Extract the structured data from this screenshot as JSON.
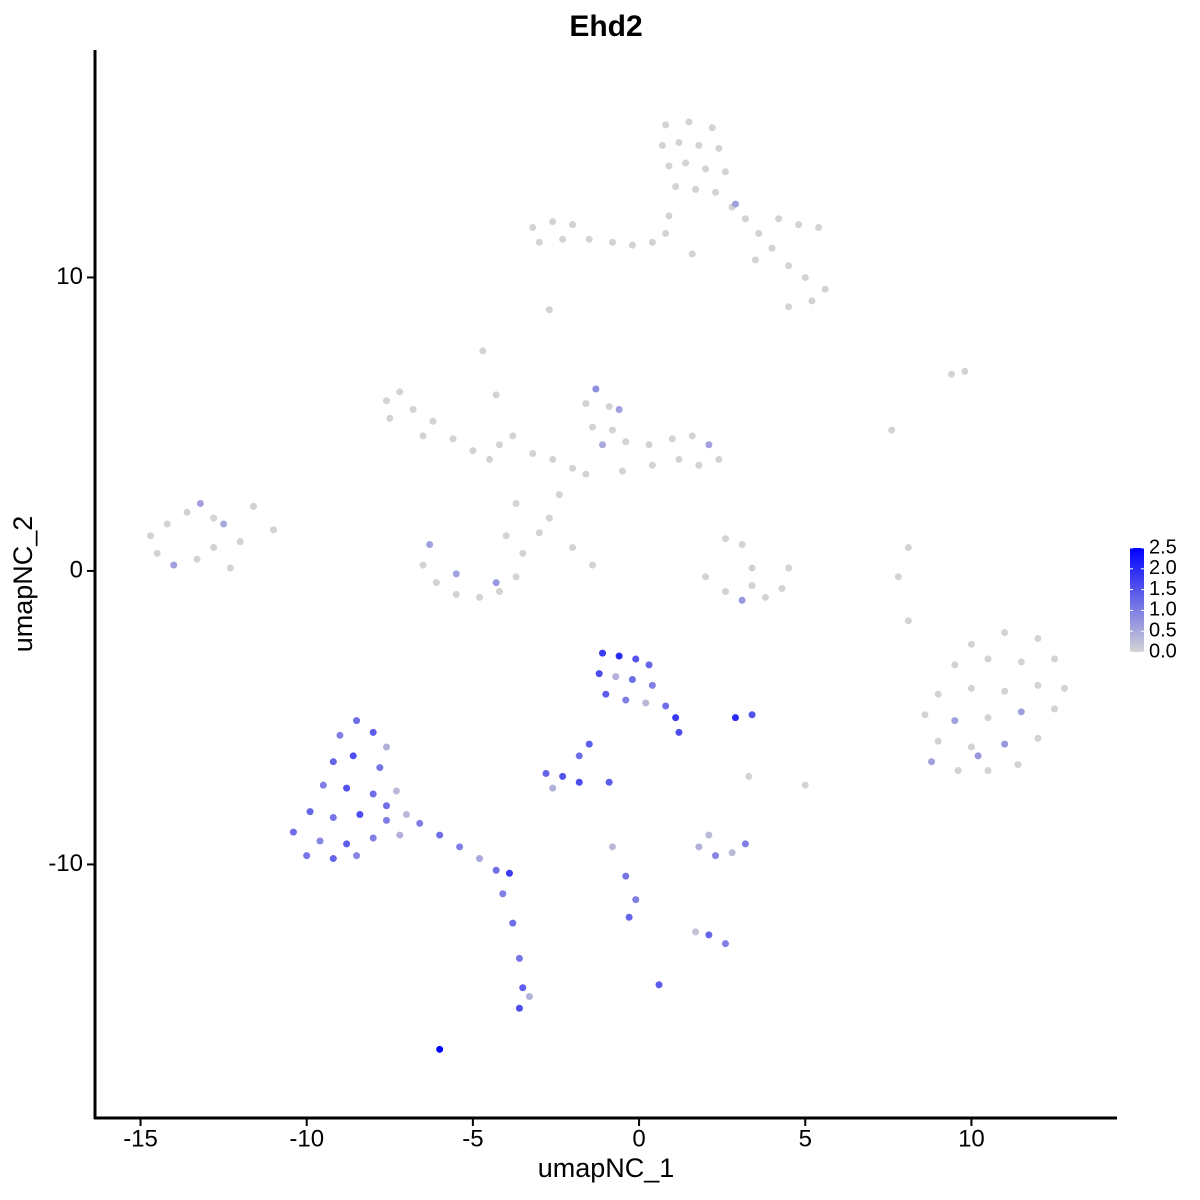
{
  "chart_data": {
    "type": "scatter",
    "title": "Ehd2",
    "x_label": "umapNC_1",
    "y_label": "umapNC_2",
    "xlim": [
      -16.37,
      14.38
    ],
    "ylim": [
      -18.64,
      17.75
    ],
    "xticks": [
      -15,
      -10,
      -5,
      0,
      5,
      10
    ],
    "yticks": [
      -10,
      0,
      10
    ],
    "clim": [
      0,
      2.5
    ],
    "cticks": [
      {
        "value": 0,
        "label": "0.0"
      },
      0.5,
      {
        "value": 1,
        "label": "1.0"
      },
      1.5,
      {
        "value": 2,
        "label": "2.0"
      },
      2.5
    ],
    "low_color": "#d3d3d3",
    "high_color": "#0000ff",
    "x": [
      0.8,
      1.5,
      2.2,
      0.7,
      1.2,
      1.8,
      2.4,
      0.9,
      1.4,
      2.0,
      2.6,
      1.1,
      1.7,
      2.3,
      2.8,
      3.2,
      3.6,
      4.0,
      4.5,
      5.0,
      5.6,
      5.2,
      4.5,
      2.9,
      4.2,
      4.8,
      5.4,
      3.5,
      -3.2,
      -2.6,
      -2.0,
      -3.0,
      -2.3,
      -1.5,
      -0.8,
      -0.2,
      0.4,
      0.8,
      0.9,
      1.6,
      -2.7,
      -7.6,
      -7.2,
      -7.5,
      -6.8,
      -6.2,
      -6.5,
      -5.6,
      -5.0,
      -4.5,
      -4.2,
      -4.7,
      -4.3,
      -3.8,
      -3.2,
      -2.6,
      -2.0,
      -2.4,
      -2.7,
      -3.7,
      -1.3,
      -1.6,
      -0.9,
      -0.6,
      -1.4,
      -0.8,
      -1.1,
      -0.4,
      0.3,
      1.0,
      1.6,
      2.1,
      2.4,
      1.8,
      1.2,
      0.4,
      -0.5,
      -1.6,
      -6.3,
      -6.5,
      -6.1,
      -5.5,
      -4.8,
      -4.2,
      -3.7,
      -3.5,
      -4.0,
      -5.5,
      -4.3,
      -3.0,
      -2.0,
      -1.4,
      -14.7,
      -14.2,
      -13.6,
      -13.2,
      -12.8,
      -14.5,
      -14.0,
      -13.3,
      -12.8,
      -12.3,
      -12.0,
      -11.6,
      -11.0,
      -12.5,
      2.6,
      3.1,
      3.4,
      2.0,
      2.6,
      3.1,
      3.8,
      4.3,
      4.5,
      3.4,
      7.6,
      9.4,
      9.8,
      8.1,
      7.8,
      8.1,
      10.0,
      11.0,
      12.0,
      9.5,
      10.5,
      11.5,
      12.5,
      9.0,
      10.0,
      11.0,
      12.0,
      12.8,
      8.6,
      9.5,
      10.5,
      11.5,
      12.5,
      9.0,
      10.0,
      11.0,
      12.0,
      9.6,
      10.5,
      11.4,
      8.8,
      10.2,
      -1.1,
      -0.6,
      -0.1,
      0.3,
      -1.2,
      -0.7,
      -0.2,
      0.4,
      -1.0,
      -0.4,
      0.2,
      0.8,
      1.1,
      1.2,
      -1.5,
      -1.8,
      2.9,
      3.4,
      -8.5,
      -9.0,
      -8.0,
      -7.6,
      -9.2,
      -8.6,
      -7.8,
      -9.5,
      -8.8,
      -8.0,
      -7.3,
      -9.9,
      -9.2,
      -8.4,
      -7.6,
      -10.4,
      -9.6,
      -8.8,
      -8.0,
      -7.2,
      -10.0,
      -9.2,
      -8.5,
      -7.6,
      -7.0,
      -6.6,
      -6.0,
      -5.4,
      -4.8,
      -4.3,
      -3.9,
      -4.1,
      -3.8,
      -3.6,
      -3.5,
      -3.6,
      -3.3,
      -6.0,
      -2.8,
      -2.3,
      -2.6,
      -1.8,
      -0.9,
      -0.8,
      -0.4,
      -0.1,
      -0.3,
      0.6,
      1.8,
      2.3,
      2.8,
      3.2,
      2.1,
      2.1,
      2.6,
      1.7,
      5.0,
      3.3
    ],
    "y": [
      15.2,
      15.3,
      15.1,
      14.5,
      14.6,
      14.5,
      14.4,
      13.8,
      13.9,
      13.7,
      13.6,
      13.1,
      13.0,
      12.9,
      12.4,
      12.0,
      11.5,
      11.0,
      10.4,
      10.0,
      9.6,
      9.2,
      9.0,
      12.5,
      12.0,
      11.8,
      11.7,
      10.6,
      11.7,
      11.9,
      11.8,
      11.2,
      11.3,
      11.3,
      11.2,
      11.1,
      11.2,
      11.5,
      12.1,
      10.8,
      8.9,
      5.8,
      6.1,
      5.2,
      5.5,
      5.1,
      4.6,
      4.5,
      4.1,
      3.8,
      4.3,
      7.5,
      6.0,
      4.6,
      4.0,
      3.8,
      3.5,
      2.6,
      1.8,
      2.3,
      6.2,
      5.7,
      5.6,
      5.5,
      4.9,
      4.8,
      4.3,
      4.4,
      4.3,
      4.5,
      4.6,
      4.3,
      3.8,
      3.6,
      3.8,
      3.6,
      3.4,
      3.3,
      0.9,
      0.2,
      -0.4,
      -0.8,
      -0.9,
      -0.7,
      -0.2,
      0.6,
      1.2,
      -0.1,
      -0.4,
      1.3,
      0.8,
      0.2,
      1.2,
      1.6,
      2.0,
      2.3,
      1.8,
      0.6,
      0.2,
      0.4,
      0.8,
      0.1,
      1.0,
      2.2,
      1.4,
      1.6,
      1.1,
      0.9,
      0.1,
      -0.2,
      -0.7,
      -1.0,
      -0.9,
      -0.6,
      0.1,
      -0.5,
      4.8,
      6.7,
      6.8,
      0.8,
      -0.2,
      -1.7,
      -2.5,
      -2.1,
      -2.3,
      -3.2,
      -3.0,
      -3.1,
      -3.0,
      -4.2,
      -4.0,
      -4.1,
      -3.9,
      -4.0,
      -4.9,
      -5.1,
      -5.0,
      -4.8,
      -4.7,
      -5.8,
      -6.0,
      -5.9,
      -5.7,
      -6.8,
      -6.8,
      -6.6,
      -6.5,
      -6.3,
      -2.8,
      -2.9,
      -3.0,
      -3.2,
      -3.5,
      -3.6,
      -3.7,
      -3.9,
      -4.2,
      -4.4,
      -4.5,
      -4.6,
      -5.0,
      -5.5,
      -5.9,
      -6.3,
      -5.0,
      -4.9,
      -5.1,
      -5.6,
      -5.5,
      -6.0,
      -6.5,
      -6.3,
      -6.7,
      -7.3,
      -7.4,
      -7.6,
      -7.5,
      -8.2,
      -8.4,
      -8.3,
      -8.5,
      -8.9,
      -9.2,
      -9.3,
      -9.1,
      -9.0,
      -9.7,
      -9.8,
      -9.7,
      -8.0,
      -8.3,
      -8.6,
      -9.0,
      -9.4,
      -9.8,
      -10.2,
      -10.3,
      -11.0,
      -12.0,
      -13.2,
      -14.2,
      -14.9,
      -14.5,
      -16.3,
      -6.9,
      -7.0,
      -7.4,
      -7.2,
      -7.2,
      -9.4,
      -10.4,
      -11.2,
      -11.8,
      -14.1,
      -9.4,
      -9.7,
      -9.6,
      -9.3,
      -9.0,
      -12.4,
      -12.7,
      -12.3,
      -7.3,
      -7.0
    ],
    "expression": [
      0,
      0,
      0,
      0,
      0,
      0,
      0,
      0,
      0,
      0,
      0,
      0,
      0,
      0,
      0,
      0,
      0,
      0,
      0,
      0,
      0,
      0,
      0,
      0.6,
      0,
      0,
      0,
      0,
      0,
      0,
      0,
      0,
      0,
      0,
      0,
      0,
      0,
      0,
      0,
      0,
      0,
      0,
      0,
      0,
      0,
      0,
      0,
      0,
      0,
      0,
      0,
      0,
      0,
      0,
      0,
      0,
      0,
      0,
      0,
      0,
      0.8,
      0,
      0,
      0.6,
      0,
      0,
      0.5,
      0,
      0,
      0,
      0,
      0.6,
      0,
      0,
      0,
      0,
      0,
      0,
      0.6,
      0,
      0,
      0,
      0,
      0,
      0,
      0,
      0,
      0.6,
      0.7,
      0,
      0,
      0,
      0,
      0,
      0,
      0.6,
      0,
      0,
      0.6,
      0,
      0,
      0,
      0,
      0,
      0,
      0.5,
      0,
      0,
      0,
      0,
      0,
      0.7,
      0,
      0,
      0,
      0,
      0,
      0,
      0,
      0,
      0,
      0,
      0,
      0,
      0,
      0,
      0,
      0,
      0,
      0,
      0,
      0,
      0,
      0,
      0,
      0.6,
      0,
      0.6,
      0,
      0,
      0,
      0.7,
      0,
      0,
      0,
      0,
      0.6,
      0.7,
      1.8,
      2.0,
      1.5,
      1.3,
      1.6,
      0.4,
      1.2,
      1.0,
      1.4,
      1.0,
      0.3,
      1.2,
      1.8,
      1.6,
      1.4,
      1.2,
      2.0,
      1.5,
      1.2,
      1.0,
      1.4,
      0.4,
      1.3,
      1.6,
      1.1,
      1.0,
      1.5,
      1.2,
      0.3,
      1.3,
      1.1,
      1.6,
      1.0,
      1.2,
      0.9,
      1.4,
      1.0,
      0.4,
      1.1,
      1.3,
      0.9,
      1.2,
      0.3,
      1.0,
      1.2,
      1.0,
      0.5,
      1.2,
      1.8,
      1.0,
      1.2,
      1.1,
      1.4,
      1.6,
      0.4,
      2.5,
      1.3,
      1.5,
      0.4,
      1.6,
      1.4,
      0.3,
      1.1,
      1.0,
      1.3,
      1.4,
      0.4,
      0.9,
      0.3,
      1.0,
      0.3,
      1.3,
      1.0,
      0.2,
      0,
      0
    ]
  }
}
